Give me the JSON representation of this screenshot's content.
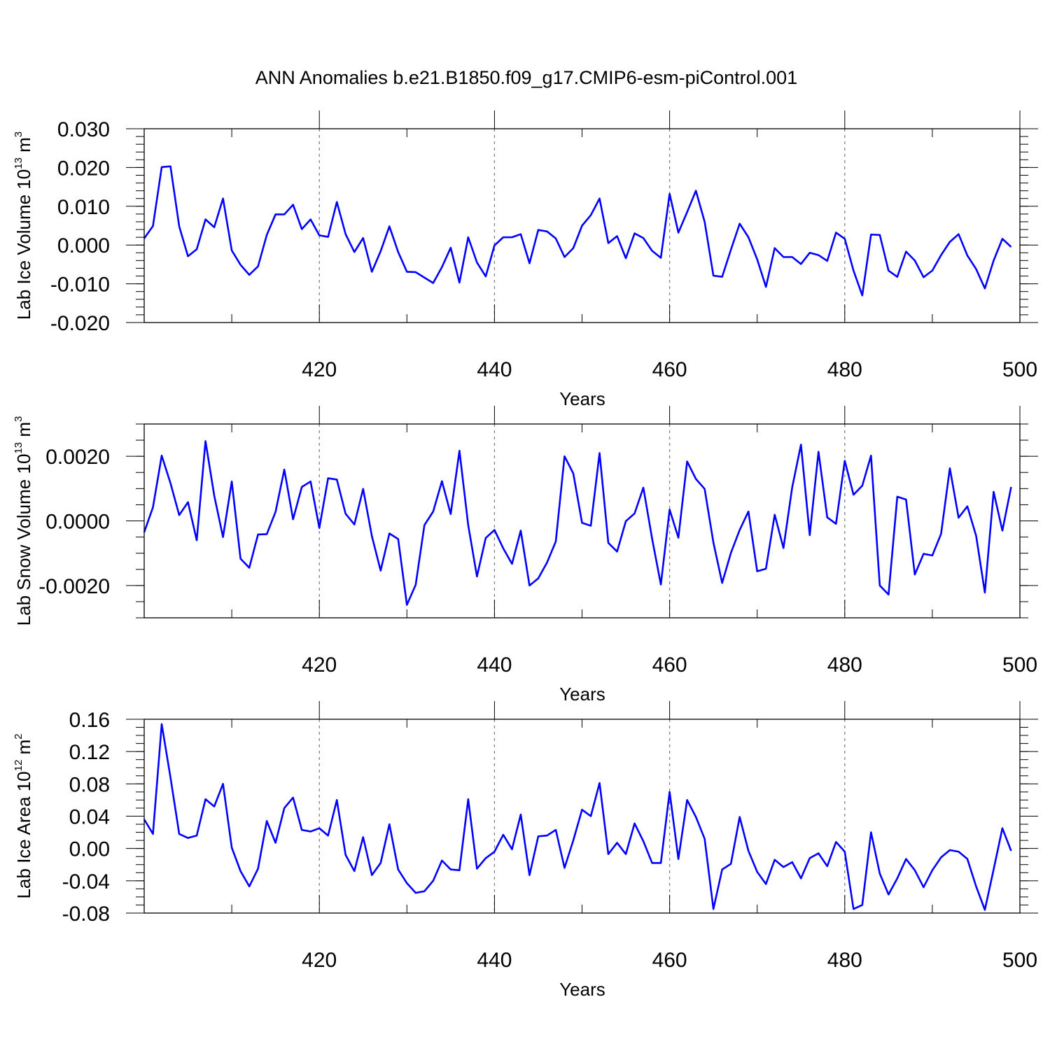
{
  "title": "ANN Anomalies b.e21.B1850.f09_g17.CMIP6-esm-piControl.001",
  "line_color": "#0000ff",
  "chart_data": [
    {
      "type": "line",
      "ylabel_main": "Lab Ice Volume 10",
      "ylabel_exp": "13",
      "ylabel_unit": " m",
      "ylabel_unit_exp": "3",
      "xlabel": "Years",
      "xlim": [
        400,
        500
      ],
      "ylim": [
        -0.02,
        0.03
      ],
      "yticks": [
        -0.02,
        -0.01,
        0.0,
        0.01,
        0.02,
        0.03
      ],
      "ytick_labels": [
        "-0.020",
        "-0.010",
        "0.000",
        "0.010",
        "0.020",
        "0.030"
      ],
      "yminor": 0.002,
      "xticks": [
        420,
        440,
        460,
        480,
        500
      ],
      "xtick_labels": [
        "420",
        "440",
        "460",
        "480",
        "500"
      ],
      "x_start": 400,
      "series": [
        {
          "values": [
            0.0017,
            0.0049,
            0.0201,
            0.0203,
            0.0048,
            -0.0029,
            -0.0011,
            0.0066,
            0.0046,
            0.012,
            -0.0014,
            -0.0051,
            -0.0077,
            -0.0055,
            0.0026,
            0.0079,
            0.0079,
            0.0104,
            0.0041,
            0.0066,
            0.0025,
            0.0021,
            0.0111,
            0.0028,
            -0.0018,
            0.0018,
            -0.0069,
            -0.0016,
            0.0048,
            -0.0018,
            -0.0069,
            -0.007,
            -0.0084,
            -0.0098,
            -0.0057,
            -0.0007,
            -0.0097,
            0.002,
            -0.0045,
            -0.0081,
            -0.0001,
            0.002,
            0.002,
            0.0028,
            -0.0047,
            0.0039,
            0.0035,
            0.0017,
            -0.0031,
            -0.0008,
            0.005,
            0.0077,
            0.012,
            0.0005,
            0.0023,
            -0.0034,
            0.003,
            0.0018,
            -0.0015,
            -0.0033,
            0.0132,
            0.0032,
            0.0085,
            0.014,
            0.006,
            -0.0079,
            -0.0082,
            -0.0012,
            0.0055,
            0.002,
            -0.0037,
            -0.0108,
            -0.0008,
            -0.0031,
            -0.0031,
            -0.0049,
            -0.002,
            -0.0026,
            -0.0041,
            0.0032,
            0.0016,
            -0.0066,
            -0.013,
            0.0027,
            0.0026,
            -0.0066,
            -0.0082,
            -0.0017,
            -0.004,
            -0.0083,
            -0.0066,
            -0.0026,
            0.0008,
            0.0028,
            -0.0027,
            -0.0062,
            -0.0112,
            -0.004,
            0.0016,
            -0.0005
          ]
        }
      ]
    },
    {
      "type": "line",
      "ylabel_main": "Lab Snow Volume 10",
      "ylabel_exp": "13",
      "ylabel_unit": " m",
      "ylabel_unit_exp": "3",
      "xlabel": "Years",
      "xlim": [
        400,
        500
      ],
      "ylim": [
        -0.003,
        0.003
      ],
      "yticks": [
        -0.002,
        0.0,
        0.002
      ],
      "ytick_labels": [
        "-0.0020",
        "0.0000",
        "0.0020"
      ],
      "yminor": 0.0005,
      "xticks": [
        420,
        440,
        460,
        480,
        500
      ],
      "xtick_labels": [
        "420",
        "440",
        "460",
        "480",
        "500"
      ],
      "x_start": 400,
      "series": [
        {
          "values": [
            -0.00035,
            0.00042,
            0.00202,
            0.00117,
            0.00018,
            0.00058,
            -0.0006,
            0.00247,
            0.00078,
            -0.0005,
            0.00122,
            -0.00117,
            -0.00145,
            -0.00042,
            -0.00041,
            0.00028,
            0.00159,
            5e-05,
            0.00105,
            0.00122,
            -0.00022,
            0.00132,
            0.00128,
            0.00022,
            -0.00011,
            0.00099,
            -0.00047,
            -0.00154,
            -0.00039,
            -0.00056,
            -0.0026,
            -0.00198,
            -0.00013,
            0.00029,
            0.00123,
            0.00021,
            0.00217,
            -0.00013,
            -0.00172,
            -0.00053,
            -0.00028,
            -0.00085,
            -0.00133,
            -0.0003,
            -0.002,
            -0.00178,
            -0.00129,
            -0.00064,
            0.002,
            0.00147,
            -6e-05,
            -0.00015,
            0.0021,
            -0.00068,
            -0.00095,
            -1e-05,
            0.00023,
            0.00103,
            -0.00055,
            -0.00197,
            0.00035,
            -0.00052,
            0.00184,
            0.0013,
            0.00099,
            -0.00067,
            -0.00192,
            -0.00099,
            -0.00028,
            0.00029,
            -0.00156,
            -0.00148,
            0.00019,
            -0.00084,
            0.00104,
            0.00236,
            -0.00044,
            0.00214,
            0.00011,
            -9e-05,
            0.00186,
            0.00081,
            0.00109,
            0.00202,
            -0.002,
            -0.00228,
            0.00075,
            0.00066,
            -0.00166,
            -0.00102,
            -0.00107,
            -0.0004,
            0.00163,
            0.0001,
            0.00045,
            -0.00046,
            -0.00222,
            0.0009,
            -0.0003,
            0.00105
          ]
        }
      ]
    },
    {
      "type": "line",
      "ylabel_main": "Lab Ice Area 10",
      "ylabel_exp": "12",
      "ylabel_unit": " m",
      "ylabel_unit_exp": "2",
      "xlabel": "Years",
      "xlim": [
        400,
        500
      ],
      "ylim": [
        -0.08,
        0.16
      ],
      "yticks": [
        -0.08,
        -0.04,
        0.0,
        0.04,
        0.08,
        0.12,
        0.16
      ],
      "ytick_labels": [
        "-0.08",
        "-0.04",
        "0.00",
        "0.04",
        "0.08",
        "0.12",
        "0.16"
      ],
      "yminor": 0.01,
      "xticks": [
        420,
        440,
        460,
        480,
        500
      ],
      "xtick_labels": [
        "420",
        "440",
        "460",
        "480",
        "500"
      ],
      "x_start": 400,
      "series": [
        {
          "values": [
            0.036,
            0.018,
            0.154,
            0.088,
            0.018,
            0.013,
            0.016,
            0.061,
            0.052,
            0.08,
            0.001,
            -0.028,
            -0.047,
            -0.025,
            0.034,
            0.007,
            0.05,
            0.063,
            0.023,
            0.021,
            0.025,
            0.016,
            0.06,
            -0.008,
            -0.028,
            0.014,
            -0.033,
            -0.018,
            0.03,
            -0.026,
            -0.043,
            -0.055,
            -0.053,
            -0.04,
            -0.015,
            -0.026,
            -0.027,
            0.061,
            -0.025,
            -0.012,
            -0.004,
            0.017,
            -0.001,
            0.042,
            -0.033,
            0.015,
            0.016,
            0.023,
            -0.024,
            0.01,
            0.048,
            0.04,
            0.081,
            -0.007,
            0.007,
            -0.007,
            0.031,
            0.009,
            -0.018,
            -0.018,
            0.07,
            -0.013,
            0.06,
            0.039,
            0.012,
            -0.075,
            -0.026,
            -0.019,
            0.039,
            -0.003,
            -0.029,
            -0.044,
            -0.014,
            -0.023,
            -0.017,
            -0.037,
            -0.012,
            -0.006,
            -0.022,
            0.008,
            -0.004,
            -0.075,
            -0.07,
            0.02,
            -0.031,
            -0.057,
            -0.037,
            -0.013,
            -0.027,
            -0.048,
            -0.027,
            -0.011,
            -0.002,
            -0.004,
            -0.013,
            -0.047,
            -0.076,
            -0.026,
            0.025,
            -0.003
          ]
        }
      ]
    }
  ]
}
